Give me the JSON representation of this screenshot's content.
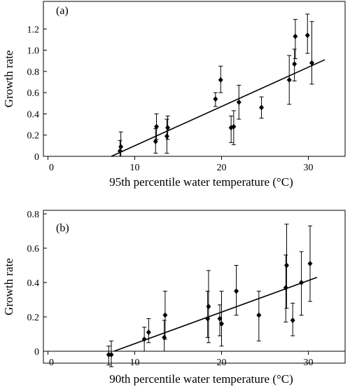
{
  "chart_data": [
    {
      "type": "scatter",
      "panel_label": "(a)",
      "xlabel": "95th percentile water temperature (°C)",
      "ylabel": "Growth rate",
      "xlim": [
        0,
        35
      ],
      "ylim": [
        0,
        1.4
      ],
      "xticks": [
        0,
        10,
        20,
        30
      ],
      "yticks": [
        0,
        0.2,
        0.4,
        0.6,
        0.8,
        1.0,
        1.2
      ],
      "ytick_labels": [
        "0",
        "0.2",
        "0.4",
        "0.6",
        "0.8",
        "1.0",
        "1.2"
      ],
      "grid": false,
      "points": [
        {
          "x": 8.3,
          "y": 0.05,
          "lo": 0.0,
          "hi": 0.15
        },
        {
          "x": 8.4,
          "y": 0.09,
          "lo": 0.0,
          "hi": 0.23
        },
        {
          "x": 12.4,
          "y": 0.14,
          "lo": 0.03,
          "hi": 0.26
        },
        {
          "x": 12.5,
          "y": 0.28,
          "lo": 0.16,
          "hi": 0.4
        },
        {
          "x": 13.7,
          "y": 0.19,
          "lo": 0.03,
          "hi": 0.35
        },
        {
          "x": 13.8,
          "y": 0.27,
          "lo": 0.16,
          "hi": 0.38
        },
        {
          "x": 19.3,
          "y": 0.54,
          "lo": 0.47,
          "hi": 0.6
        },
        {
          "x": 19.9,
          "y": 0.72,
          "lo": 0.6,
          "hi": 0.85
        },
        {
          "x": 21.1,
          "y": 0.27,
          "lo": 0.13,
          "hi": 0.38
        },
        {
          "x": 21.4,
          "y": 0.28,
          "lo": 0.11,
          "hi": 0.43
        },
        {
          "x": 22.0,
          "y": 0.51,
          "lo": 0.35,
          "hi": 0.67
        },
        {
          "x": 24.6,
          "y": 0.46,
          "lo": 0.36,
          "hi": 0.56
        },
        {
          "x": 27.8,
          "y": 0.72,
          "lo": 0.49,
          "hi": 0.95
        },
        {
          "x": 28.4,
          "y": 0.87,
          "lo": 0.71,
          "hi": 1.01
        },
        {
          "x": 28.5,
          "y": 1.13,
          "lo": 0.92,
          "hi": 1.29
        },
        {
          "x": 29.9,
          "y": 1.14,
          "lo": 0.97,
          "hi": 1.34
        },
        {
          "x": 30.4,
          "y": 0.88,
          "lo": 0.68,
          "hi": 1.27
        }
      ],
      "fit_line": {
        "x": [
          7.3,
          31.9
        ],
        "y": [
          0.0,
          0.91
        ]
      }
    },
    {
      "type": "scatter",
      "panel_label": "(b)",
      "xlabel": "90th percentile water temperature (°C)",
      "ylabel": "Growth rate",
      "xlim": [
        0,
        35
      ],
      "ylim": [
        -0.07,
        0.8
      ],
      "xticks": [
        0,
        10,
        20,
        30
      ],
      "yticks": [
        0,
        0.2,
        0.4,
        0.6,
        0.8
      ],
      "ytick_labels": [
        "0",
        "0.2",
        "0.4",
        "0.6",
        "0.8"
      ],
      "grid": false,
      "points": [
        {
          "x": 7.0,
          "y": -0.02,
          "lo": -0.08,
          "hi": 0.03
        },
        {
          "x": 7.3,
          "y": -0.02,
          "lo": -0.09,
          "hi": 0.06
        },
        {
          "x": 11.1,
          "y": 0.07,
          "lo": 0.0,
          "hi": 0.14
        },
        {
          "x": 11.6,
          "y": 0.11,
          "lo": 0.05,
          "hi": 0.19
        },
        {
          "x": 13.4,
          "y": 0.08,
          "lo": 0.0,
          "hi": 0.18
        },
        {
          "x": 13.5,
          "y": 0.21,
          "lo": 0.07,
          "hi": 0.35
        },
        {
          "x": 18.4,
          "y": 0.19,
          "lo": 0.08,
          "hi": 0.35
        },
        {
          "x": 18.5,
          "y": 0.26,
          "lo": 0.05,
          "hi": 0.47
        },
        {
          "x": 19.8,
          "y": 0.19,
          "lo": 0.09,
          "hi": 0.27
        },
        {
          "x": 20.0,
          "y": 0.16,
          "lo": 0.03,
          "hi": 0.35
        },
        {
          "x": 21.7,
          "y": 0.35,
          "lo": 0.21,
          "hi": 0.5
        },
        {
          "x": 24.3,
          "y": 0.21,
          "lo": 0.06,
          "hi": 0.35
        },
        {
          "x": 27.4,
          "y": 0.37,
          "lo": 0.17,
          "hi": 0.56
        },
        {
          "x": 27.5,
          "y": 0.5,
          "lo": 0.25,
          "hi": 0.74
        },
        {
          "x": 28.2,
          "y": 0.18,
          "lo": 0.09,
          "hi": 0.28
        },
        {
          "x": 29.2,
          "y": 0.4,
          "lo": 0.21,
          "hi": 0.58
        },
        {
          "x": 30.2,
          "y": 0.51,
          "lo": 0.29,
          "hi": 0.73
        }
      ],
      "fit_line": {
        "x": [
          7.6,
          31.0
        ],
        "y": [
          0.0,
          0.43
        ]
      }
    }
  ]
}
